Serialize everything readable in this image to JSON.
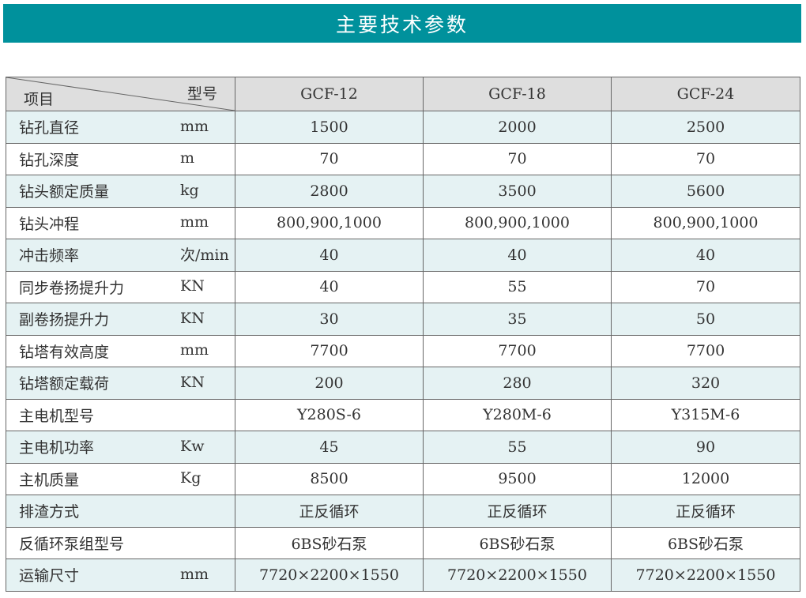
{
  "title": "主要技术参数",
  "header": {
    "item_label": "项目",
    "model_label": "型号",
    "models": [
      "GCF-12",
      "GCF-18",
      "GCF-24"
    ]
  },
  "rows": [
    {
      "name": "钻孔直径",
      "unit": "mm",
      "values": [
        "1500",
        "2000",
        "2500"
      ]
    },
    {
      "name": "钻孔深度",
      "unit": "m",
      "values": [
        "70",
        "70",
        "70"
      ]
    },
    {
      "name": "钻头额定质量",
      "unit": "kg",
      "values": [
        "2800",
        "3500",
        "5600"
      ]
    },
    {
      "name": "钻头冲程",
      "unit": "mm",
      "values": [
        "800,900,1000",
        "800,900,1000",
        "800,900,1000"
      ]
    },
    {
      "name": "冲击频率",
      "unit": "次/min",
      "values": [
        "40",
        "40",
        "40"
      ]
    },
    {
      "name": "同步卷扬提升力",
      "unit": "KN",
      "values": [
        "40",
        "55",
        "70"
      ]
    },
    {
      "name": "副卷扬提升力",
      "unit": "KN",
      "values": [
        "30",
        "35",
        "50"
      ]
    },
    {
      "name": "钻塔有效高度",
      "unit": "mm",
      "values": [
        "7700",
        "7700",
        "7700"
      ]
    },
    {
      "name": "钻塔额定载荷",
      "unit": "KN",
      "values": [
        "200",
        "280",
        "320"
      ]
    },
    {
      "name": "主电机型号",
      "unit": "",
      "values": [
        "Y280S-6",
        "Y280M-6",
        "Y315M-6"
      ]
    },
    {
      "name": "主电机功率",
      "unit": "Kw",
      "values": [
        "45",
        "55",
        "90"
      ]
    },
    {
      "name": "主机质量",
      "unit": "Kg",
      "values": [
        "8500",
        "9500",
        "12000"
      ]
    },
    {
      "name": "排渣方式",
      "unit": "",
      "values": [
        "正反循环",
        "正反循环",
        "正反循环"
      ]
    },
    {
      "name": "反循环泵组型号",
      "unit": "",
      "values": [
        "6BS砂石泵",
        "6BS砂石泵",
        "6BS砂石泵"
      ]
    },
    {
      "name": "运输尺寸",
      "unit": "mm",
      "values": [
        "7720×2200×1550",
        "7720×2200×1550",
        "7720×2200×1550"
      ]
    }
  ],
  "colors": {
    "banner": "#00919c",
    "row_tint": "#e5f2f3",
    "header_bg": "#dedede"
  }
}
